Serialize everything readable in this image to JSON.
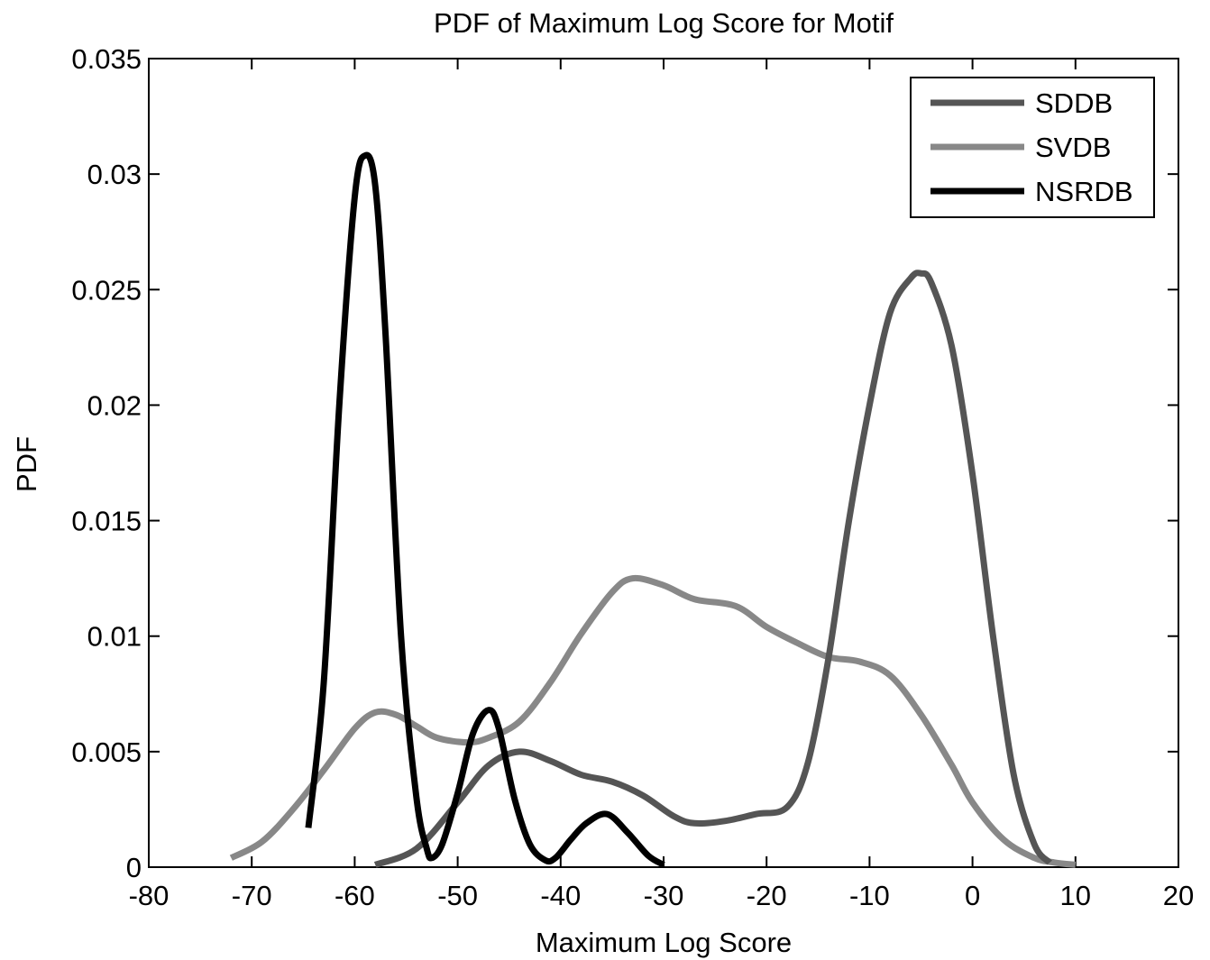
{
  "chart_data": {
    "type": "line",
    "title": "PDF of Maximum Log Score for Motif",
    "xlabel": "Maximum Log Score",
    "ylabel": "PDF",
    "xlim": [
      -80,
      20
    ],
    "ylim": [
      0,
      0.035
    ],
    "xticks": [
      -80,
      -70,
      -60,
      -50,
      -40,
      -30,
      -20,
      -10,
      0,
      10,
      20
    ],
    "xtick_labels": [
      "-80",
      "-70",
      "-60",
      "-50",
      "-40",
      "-30",
      "-20",
      "-10",
      "0",
      "10",
      "20"
    ],
    "yticks": [
      0,
      0.005,
      0.01,
      0.015,
      0.02,
      0.025,
      0.03,
      0.035
    ],
    "ytick_labels": [
      "0",
      "0.005",
      "0.01",
      "0.015",
      "0.02",
      "0.025",
      "0.03",
      "0.035"
    ],
    "grid": false,
    "legend_position": "top-right",
    "series": [
      {
        "name": "SDDB",
        "color": "#555555",
        "x": [
          -58,
          -54,
          -50,
          -47,
          -44,
          -41,
          -38,
          -35,
          -32,
          -29,
          -27,
          -24,
          -21,
          -18,
          -16,
          -14,
          -12,
          -10,
          -8,
          -6,
          -5,
          -4,
          -2,
          0,
          2,
          4,
          6,
          7.5
        ],
        "y": [
          0.0001,
          0.0008,
          0.0028,
          0.0044,
          0.005,
          0.0046,
          0.004,
          0.0037,
          0.0031,
          0.0022,
          0.0019,
          0.002,
          0.0023,
          0.0026,
          0.0045,
          0.009,
          0.015,
          0.02,
          0.024,
          0.0255,
          0.0257,
          0.0253,
          0.0225,
          0.017,
          0.01,
          0.004,
          0.001,
          0.0002
        ]
      },
      {
        "name": "SVDB",
        "color": "#888888",
        "x": [
          -72,
          -69,
          -66,
          -63,
          -60,
          -58,
          -56,
          -54,
          -52,
          -49,
          -47,
          -44,
          -41,
          -38,
          -35,
          -33,
          -30,
          -27,
          -23,
          -20,
          -17,
          -14,
          -11,
          -8,
          -5,
          -2,
          0,
          3,
          6,
          8,
          10
        ],
        "y": [
          0.0004,
          0.0011,
          0.0025,
          0.0042,
          0.006,
          0.0067,
          0.0066,
          0.0061,
          0.0056,
          0.0054,
          0.0056,
          0.0063,
          0.008,
          0.0101,
          0.0119,
          0.0125,
          0.0122,
          0.0116,
          0.0113,
          0.0104,
          0.0097,
          0.0091,
          0.0089,
          0.0083,
          0.0066,
          0.0044,
          0.0028,
          0.0012,
          0.0004,
          0.0002,
          0.0001
        ]
      },
      {
        "name": "NSRDB",
        "color": "#000000",
        "x": [
          -64.5,
          -63,
          -61.5,
          -60,
          -59,
          -58,
          -57,
          -55.5,
          -54,
          -53,
          -52.5,
          -51.5,
          -50,
          -48.5,
          -47,
          -46,
          -44.5,
          -43,
          -41.5,
          -40.5,
          -39,
          -37.5,
          -35.5,
          -33.5,
          -31.5,
          -30
        ],
        "y": [
          0.0017,
          0.008,
          0.02,
          0.029,
          0.0308,
          0.0295,
          0.023,
          0.01,
          0.003,
          0.0008,
          0.0004,
          0.001,
          0.0032,
          0.0058,
          0.0068,
          0.006,
          0.003,
          0.001,
          0.0003,
          0.0004,
          0.0012,
          0.0019,
          0.0023,
          0.0015,
          0.0005,
          0.0001
        ]
      }
    ]
  }
}
